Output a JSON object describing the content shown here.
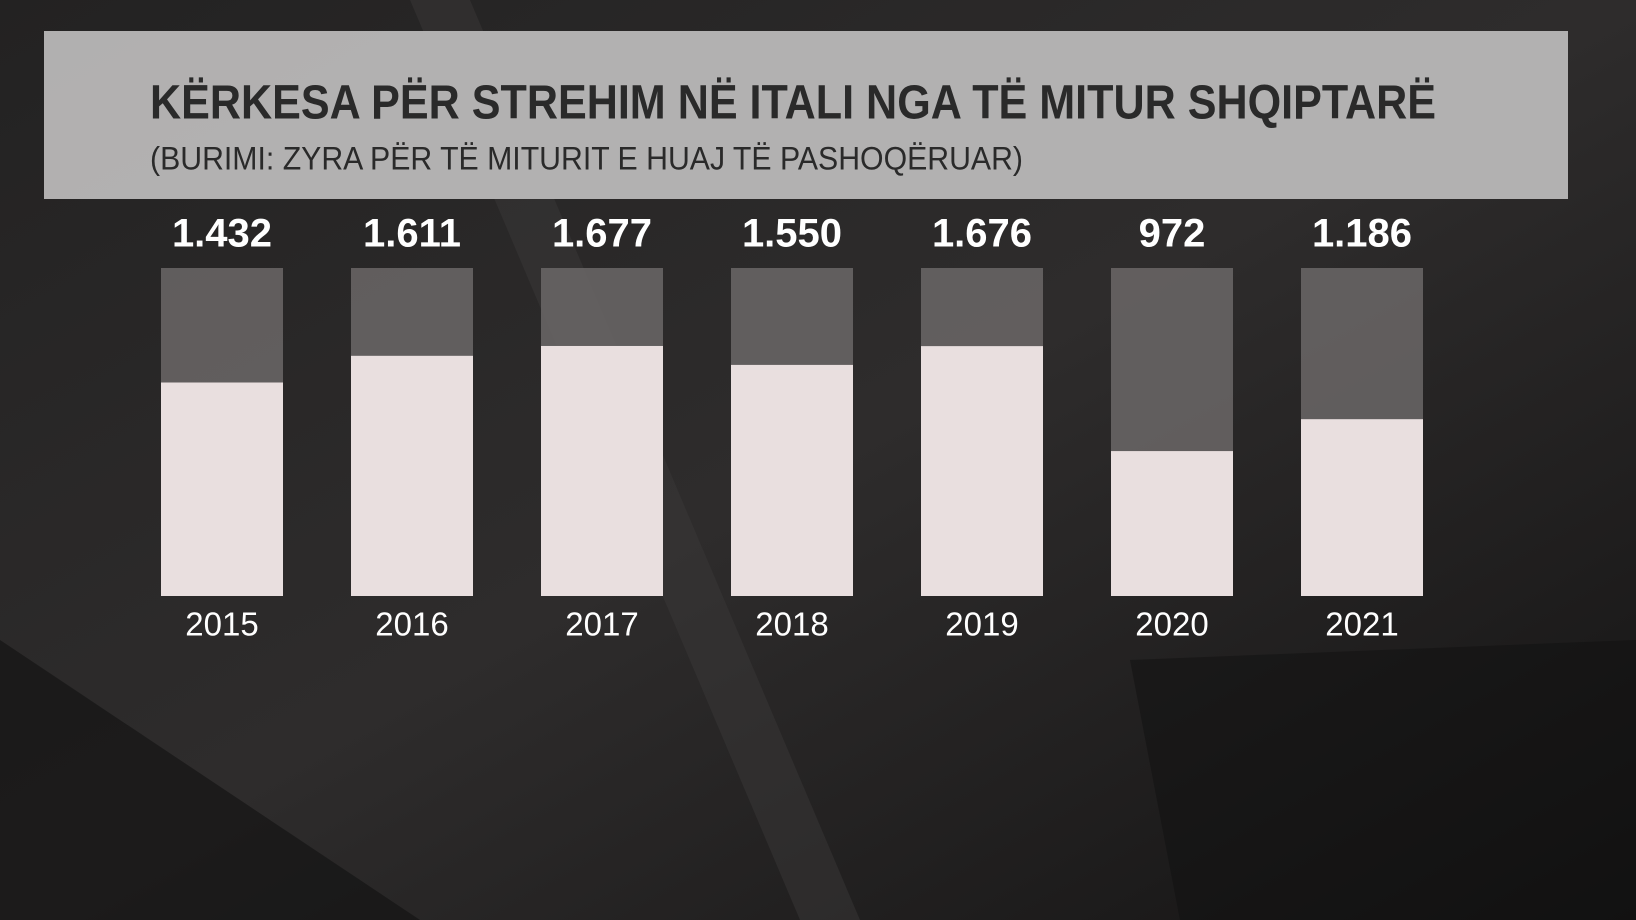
{
  "chart_data": {
    "type": "bar",
    "title": "KËRKESA PËR STREHIM NË ITALI NGA TË MITUR SHQIPTARË",
    "subtitle": "(BURIMI: ZYRA PËR TË MITURIT E HUAJ TË PASHOQËRUAR)",
    "categories": [
      "2015",
      "2016",
      "2017",
      "2018",
      "2019",
      "2020",
      "2021"
    ],
    "values": [
      1432,
      1611,
      1677,
      1550,
      1676,
      972,
      1186
    ],
    "value_labels": [
      "1.432",
      "1.611",
      "1.677",
      "1.550",
      "1.676",
      "972",
      "1.186"
    ],
    "color": "#e9dfdf",
    "ylim": [
      0,
      2200
    ]
  }
}
